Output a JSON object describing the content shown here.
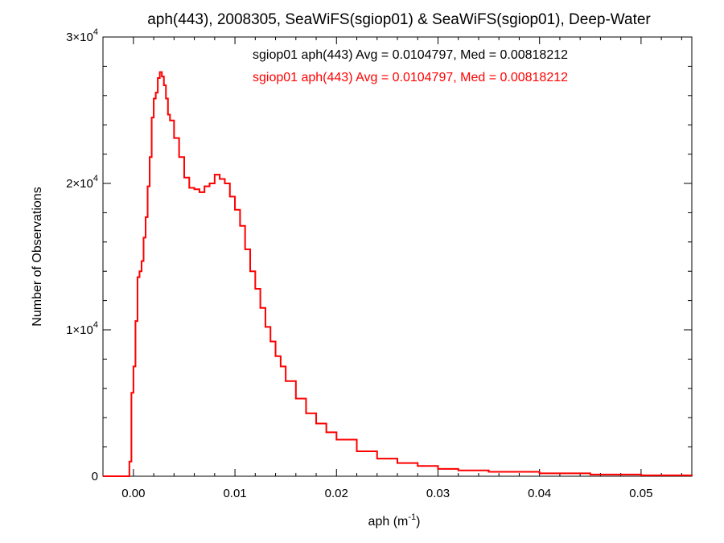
{
  "chart_data": {
    "type": "histogram",
    "title": "aph(443), 2008305, SeaWiFS(sgiop01) & SeaWiFS(sgiop01), Deep-Water",
    "xlabel": {
      "base": "aph (m",
      "sup": "-1",
      "end": ")"
    },
    "ylabel": "Number of Observations",
    "xlim": [
      -0.003,
      0.055
    ],
    "ylim": [
      0,
      30000
    ],
    "xticks": [
      {
        "value": 0.0,
        "label": "0.00"
      },
      {
        "value": 0.01,
        "label": "0.01"
      },
      {
        "value": 0.02,
        "label": "0.02"
      },
      {
        "value": 0.03,
        "label": "0.03"
      },
      {
        "value": 0.04,
        "label": "0.04"
      },
      {
        "value": 0.05,
        "label": "0.05"
      }
    ],
    "yticks": [
      {
        "value": 0,
        "mantissa": "0",
        "exp": ""
      },
      {
        "value": 10000,
        "mantissa": "1×10",
        "exp": "4"
      },
      {
        "value": 20000,
        "mantissa": "2×10",
        "exp": "4"
      },
      {
        "value": 30000,
        "mantissa": "3×10",
        "exp": "4"
      }
    ],
    "legend_position": "top-center",
    "series": [
      {
        "name": "sgiop01 aph(443) Avg = 0.0104797, Med = 0.00818212",
        "color": "#000000",
        "x": [
          -0.003,
          -0.0004,
          -0.0002,
          0.0,
          0.0002,
          0.0004,
          0.0006,
          0.0008,
          0.001,
          0.0012,
          0.0014,
          0.0016,
          0.0018,
          0.002,
          0.0022,
          0.0024,
          0.0026,
          0.0028,
          0.003,
          0.0032,
          0.0034,
          0.0036,
          0.004,
          0.0045,
          0.005,
          0.0055,
          0.006,
          0.0065,
          0.007,
          0.0075,
          0.008,
          0.0085,
          0.009,
          0.0095,
          0.01,
          0.0105,
          0.011,
          0.0115,
          0.012,
          0.0125,
          0.013,
          0.0135,
          0.014,
          0.0145,
          0.015,
          0.016,
          0.017,
          0.018,
          0.019,
          0.02,
          0.022,
          0.024,
          0.026,
          0.028,
          0.03,
          0.032,
          0.035,
          0.04,
          0.045,
          0.05,
          0.055
        ],
        "y": [
          0,
          1000,
          5700,
          7500,
          10600,
          13600,
          14000,
          14700,
          16300,
          17700,
          19800,
          21800,
          24500,
          25800,
          26200,
          27200,
          27600,
          27300,
          26700,
          25800,
          24700,
          24300,
          23100,
          21800,
          20400,
          19700,
          19600,
          19400,
          19800,
          20000,
          20600,
          20300,
          20000,
          19100,
          18200,
          17100,
          15500,
          14000,
          12800,
          11500,
          10200,
          9200,
          8200,
          7500,
          6500,
          5300,
          4300,
          3600,
          3000,
          2500,
          1700,
          1200,
          900,
          700,
          500,
          400,
          300,
          200,
          120,
          60,
          20
        ]
      },
      {
        "name": "sgiop01 aph(443) Avg = 0.0104797, Med = 0.00818212",
        "color": "#ff0000",
        "x": [
          -0.003,
          -0.0004,
          -0.0002,
          0.0,
          0.0002,
          0.0004,
          0.0006,
          0.0008,
          0.001,
          0.0012,
          0.0014,
          0.0016,
          0.0018,
          0.002,
          0.0022,
          0.0024,
          0.0026,
          0.0028,
          0.003,
          0.0032,
          0.0034,
          0.0036,
          0.004,
          0.0045,
          0.005,
          0.0055,
          0.006,
          0.0065,
          0.007,
          0.0075,
          0.008,
          0.0085,
          0.009,
          0.0095,
          0.01,
          0.0105,
          0.011,
          0.0115,
          0.012,
          0.0125,
          0.013,
          0.0135,
          0.014,
          0.0145,
          0.015,
          0.016,
          0.017,
          0.018,
          0.019,
          0.02,
          0.022,
          0.024,
          0.026,
          0.028,
          0.03,
          0.032,
          0.035,
          0.04,
          0.045,
          0.05,
          0.055
        ],
        "y": [
          0,
          1000,
          5700,
          7500,
          10600,
          13600,
          14000,
          14700,
          16300,
          17700,
          19800,
          21800,
          24500,
          25800,
          26200,
          27200,
          27600,
          27300,
          26700,
          25800,
          24700,
          24300,
          23100,
          21800,
          20400,
          19700,
          19600,
          19400,
          19800,
          20000,
          20600,
          20300,
          20000,
          19100,
          18200,
          17100,
          15500,
          14000,
          12800,
          11500,
          10200,
          9200,
          8200,
          7500,
          6500,
          5300,
          4300,
          3600,
          3000,
          2500,
          1700,
          1200,
          900,
          700,
          500,
          400,
          300,
          200,
          120,
          60,
          20
        ]
      }
    ]
  }
}
